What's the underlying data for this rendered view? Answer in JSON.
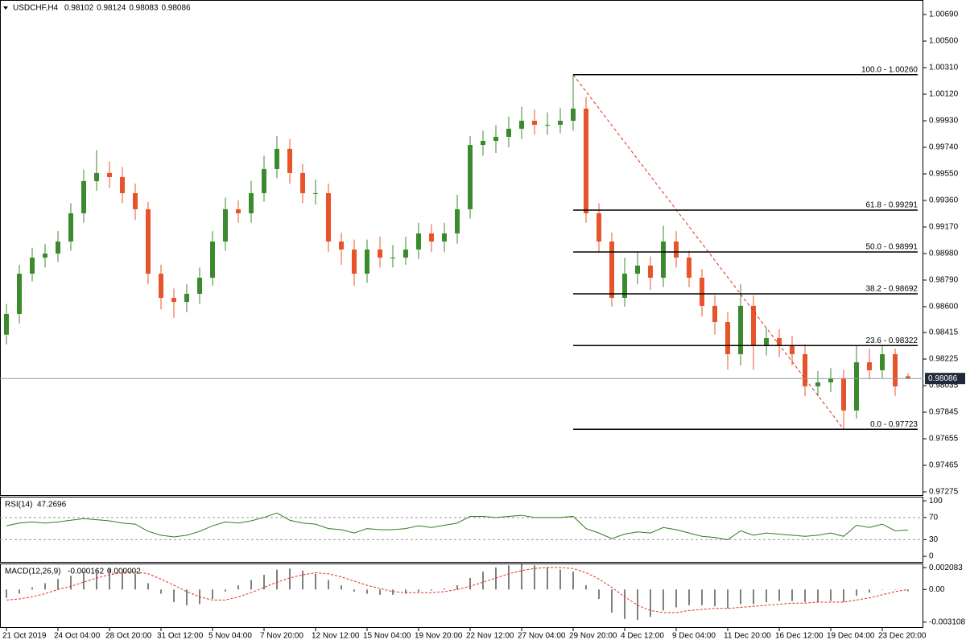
{
  "chart_data": [
    {
      "type": "candlestick",
      "title": "USDCHF,H4",
      "header_values": [
        0.98102,
        0.98124,
        0.98083,
        0.98086
      ],
      "bull_color": "#3c8a2e",
      "bear_color": "#e8542a",
      "open": [
        0.984,
        0.98548,
        0.98836,
        0.98951,
        0.9898,
        0.99066,
        0.99268,
        0.99498,
        0.99556,
        0.99527,
        0.99412,
        0.99297,
        0.98836,
        0.98663,
        0.98634,
        0.98692,
        0.98807,
        0.99066,
        0.99297,
        0.99268,
        0.99412,
        0.99585,
        0.99729,
        0.99556,
        0.99412,
        0.99412,
        0.99066,
        0.99009,
        0.98836,
        0.99009,
        0.98951,
        0.98951,
        0.99009,
        0.99124,
        0.99066,
        0.99124,
        0.99297,
        0.99757,
        0.99786,
        0.99815,
        0.99873,
        0.9993,
        0.99901,
        0.99901,
        0.9993,
        1.00017,
        0.99268,
        0.99066,
        0.98663,
        0.98836,
        0.98894,
        0.98807,
        0.99066,
        0.98951,
        0.98807,
        0.98606,
        0.9849,
        0.9826,
        0.98606,
        0.98318,
        0.98375,
        0.98318,
        0.9826,
        0.9803,
        0.98058,
        0.98087,
        0.97857,
        0.98202,
        0.98145,
        0.9826,
        0.98102
      ],
      "high": [
        0.9862,
        0.989,
        0.9902,
        0.9905,
        0.9914,
        0.9934,
        0.9958,
        0.9972,
        0.9964,
        0.996,
        0.9948,
        0.9935,
        0.989,
        0.9873,
        0.9876,
        0.9888,
        0.9914,
        0.9938,
        0.9936,
        0.995,
        0.9968,
        0.9982,
        0.998,
        0.9962,
        0.9951,
        0.9948,
        0.9913,
        0.9908,
        0.9908,
        0.991,
        0.9904,
        0.991,
        0.992,
        0.9919,
        0.992,
        0.994,
        0.9982,
        0.9986,
        0.999,
        0.9996,
        1.0003,
        1.0001,
        0.9999,
        1.0002,
        1.0026,
        1.001,
        0.9934,
        0.9913,
        0.9895,
        0.9899,
        0.9896,
        0.9918,
        0.9914,
        0.99,
        0.9887,
        0.9868,
        0.9856,
        0.9876,
        0.9868,
        0.9845,
        0.9844,
        0.9839,
        0.9833,
        0.9814,
        0.9816,
        0.9815,
        0.98322,
        0.983,
        0.98322,
        0.983,
        0.98124
      ],
      "low": [
        0.9833,
        0.9848,
        0.9878,
        0.9888,
        0.9892,
        0.99,
        0.992,
        0.9943,
        0.9945,
        0.9934,
        0.9922,
        0.9876,
        0.9858,
        0.9852,
        0.9856,
        0.9862,
        0.9875,
        0.99,
        0.992,
        0.992,
        0.9935,
        0.9952,
        0.9948,
        0.9934,
        0.9933,
        0.9899,
        0.989,
        0.9875,
        0.9877,
        0.9888,
        0.9888,
        0.989,
        0.9894,
        0.9899,
        0.9899,
        0.9905,
        0.9923,
        0.9968,
        0.997,
        0.9974,
        0.998,
        0.9983,
        0.9983,
        0.9984,
        0.9986,
        0.992,
        0.9899,
        0.986,
        0.986,
        0.9876,
        0.9872,
        0.9874,
        0.9888,
        0.9874,
        0.9853,
        0.984,
        0.9815,
        0.9818,
        0.9815,
        0.9825,
        0.9824,
        0.9818,
        0.9796,
        0.9796,
        0.9799,
        0.97723,
        0.978,
        0.9808,
        0.9809,
        0.9796,
        0.98083
      ],
      "close": [
        0.98548,
        0.98836,
        0.98951,
        0.9898,
        0.99066,
        0.99268,
        0.99498,
        0.99556,
        0.99527,
        0.99412,
        0.99297,
        0.98836,
        0.98663,
        0.98634,
        0.98692,
        0.98807,
        0.99066,
        0.99297,
        0.99268,
        0.99412,
        0.99585,
        0.99729,
        0.99556,
        0.99412,
        0.99412,
        0.99066,
        0.99009,
        0.98836,
        0.99009,
        0.98951,
        0.98951,
        0.99009,
        0.99124,
        0.99066,
        0.99124,
        0.99297,
        0.99757,
        0.99786,
        0.99815,
        0.99873,
        0.9993,
        0.99901,
        0.99901,
        0.9993,
        1.00017,
        0.99268,
        0.99066,
        0.98663,
        0.98836,
        0.98894,
        0.98807,
        0.99066,
        0.98951,
        0.98807,
        0.98606,
        0.9849,
        0.9826,
        0.98606,
        0.98318,
        0.98375,
        0.98318,
        0.9826,
        0.9803,
        0.98058,
        0.98087,
        0.97857,
        0.98202,
        0.98145,
        0.9826,
        0.9803,
        0.98086
      ],
      "ylim": [
        0.97252,
        1.00794
      ],
      "yticks": [
        {
          "value": 1.0069,
          "label": "1.00690"
        },
        {
          "value": 1.005,
          "label": "1.00500"
        },
        {
          "value": 1.0031,
          "label": "1.00310"
        },
        {
          "value": 1.0012,
          "label": "1.00120"
        },
        {
          "value": 0.9993,
          "label": "0.99930"
        },
        {
          "value": 0.9974,
          "label": "0.99740"
        },
        {
          "value": 0.9955,
          "label": "0.99550"
        },
        {
          "value": 0.9936,
          "label": "0.99360"
        },
        {
          "value": 0.9917,
          "label": "0.99170"
        },
        {
          "value": 0.9898,
          "label": "0.98980"
        },
        {
          "value": 0.9879,
          "label": "0.98790"
        },
        {
          "value": 0.986,
          "label": "0.98600"
        },
        0.98415,
        0.98225,
        0.98035,
        0.97845,
        0.97655,
        0.97465,
        0.97275
      ],
      "last_price": 0.98086,
      "fib_levels": [
        {
          "value": 1.0026,
          "label": "100.0 - 1.00260"
        },
        {
          "value": 0.99291,
          "label": "61.8 - 0.99291"
        },
        {
          "value": 0.98991,
          "label": "50.0 - 0.98991"
        },
        {
          "value": 0.98692,
          "label": "38.2 - 0.98692"
        },
        {
          "value": 0.98322,
          "label": "23.6 - 0.98322"
        },
        {
          "value": 0.97723,
          "label": "0.0 - 0.97723"
        }
      ],
      "xticks": [
        {
          "value": 0,
          "label": "21 Oct 2019"
        },
        {
          "value": 4,
          "label": "24 Oct 04:00"
        },
        {
          "value": 8,
          "label": "28 Oct 20:00"
        },
        {
          "value": 12,
          "label": "31 Oct 12:00"
        },
        {
          "value": 16,
          "label": "5 Nov 04:00"
        },
        {
          "value": 20,
          "label": "7 Nov 20:00"
        },
        {
          "value": 24,
          "label": "12 Nov 12:00"
        },
        {
          "value": 28,
          "label": "15 Nov 04:00"
        },
        {
          "value": 32,
          "label": "19 Nov 20:00"
        },
        {
          "value": 36,
          "label": "22 Nov 12:00"
        },
        {
          "value": 40,
          "label": "27 Nov 04:00"
        },
        {
          "value": 44,
          "label": "29 Nov 20:00"
        },
        {
          "value": 48,
          "label": "4 Dec 12:00"
        },
        {
          "value": 52,
          "label": "9 Dec 04:00"
        },
        {
          "value": 56,
          "label": "11 Dec 20:00"
        },
        {
          "value": 60,
          "label": "16 Dec 12:00"
        },
        {
          "value": 64,
          "label": "19 Dec 04:00"
        },
        {
          "value": 68,
          "label": "23 Dec 20:00"
        }
      ]
    },
    {
      "type": "line",
      "title": "RSI(14)",
      "header_value": 47.2696,
      "color": "#2e7d1e",
      "values": [
        55,
        60,
        62,
        60,
        62,
        65,
        68,
        66,
        64,
        60,
        58,
        45,
        38,
        35,
        38,
        45,
        55,
        62,
        60,
        64,
        70,
        78,
        65,
        60,
        58,
        50,
        48,
        42,
        50,
        48,
        48,
        50,
        55,
        52,
        56,
        60,
        72,
        72,
        70,
        72,
        74,
        70,
        70,
        70,
        72,
        50,
        42,
        32,
        40,
        44,
        42,
        52,
        48,
        42,
        36,
        34,
        30,
        46,
        38,
        42,
        40,
        38,
        36,
        38,
        42,
        36,
        56,
        52,
        58,
        46,
        47.2696
      ],
      "ylim": [
        -10,
        106
      ],
      "yticks": [
        100,
        70,
        30,
        0
      ],
      "levels": [
        70,
        30
      ]
    },
    {
      "type": "macd",
      "title": "MACD(12,26,9)",
      "header_values": [
        -0.000162,
        2e-06
      ],
      "color": "#808080",
      "signal_color": "#e03020",
      "values": [
        -0.0008,
        -0.0004,
        0.0002,
        0.0006,
        0.001,
        0.0013,
        0.0017,
        0.002,
        0.0021,
        0.0019,
        0.0015,
        0.0006,
        -0.0004,
        -0.0012,
        -0.0015,
        -0.0014,
        -0.0009,
        -0.0002,
        0.0004,
        0.0009,
        0.0014,
        0.0019,
        0.002,
        0.0018,
        0.0015,
        0.0009,
        0.0004,
        -0.0002,
        -0.0004,
        -0.0005,
        -0.0005,
        -0.0004,
        -0.0002,
        -0.0001,
        0.0001,
        0.0004,
        0.0011,
        0.0017,
        0.0021,
        0.0023,
        0.0024,
        0.0023,
        0.0021,
        0.0019,
        0.0017,
        0.0004,
        -0.0009,
        -0.0022,
        -0.0028,
        -0.0029,
        -0.0026,
        -0.002,
        -0.0017,
        -0.0015,
        -0.0015,
        -0.0016,
        -0.0018,
        -0.0014,
        -0.0014,
        -0.0012,
        -0.0011,
        -0.0011,
        -0.0012,
        -0.0012,
        -0.0011,
        -0.0012,
        -0.0006,
        -0.0003,
        0,
        0,
        -0.000162
      ],
      "signal": [
        -0.001,
        -0.0009,
        -0.0007,
        -0.0004,
        0,
        0.0003,
        0.0007,
        0.0011,
        0.0014,
        0.0016,
        0.0017,
        0.0015,
        0.001,
        0.0004,
        -0.0002,
        -0.0007,
        -0.001,
        -0.001,
        -0.0007,
        -0.0003,
        0.0002,
        0.0007,
        0.0011,
        0.0014,
        0.0016,
        0.0015,
        0.0012,
        0.0008,
        0.0004,
        0.0001,
        -0.0002,
        -0.0003,
        -0.0003,
        -0.0003,
        -0.0002,
        0,
        0.0003,
        0.0007,
        0.0011,
        0.0015,
        0.0018,
        0.002,
        0.0021,
        0.0021,
        0.002,
        0.0016,
        0.001,
        0.0002,
        -0.0007,
        -0.0015,
        -0.002,
        -0.0022,
        -0.0022,
        -0.002,
        -0.0019,
        -0.0018,
        -0.0018,
        -0.0017,
        -0.0016,
        -0.0015,
        -0.0014,
        -0.0013,
        -0.0013,
        -0.0012,
        -0.0012,
        -0.0012,
        -0.001,
        -0.0008,
        -0.0005,
        -0.0002,
        2e-06
      ],
      "ylim": [
        -0.00358,
        0.0024
      ],
      "yticks": [
        0.002083,
        {
          "value": 0,
          "label": "0.00"
        },
        -0.003108
      ]
    }
  ]
}
